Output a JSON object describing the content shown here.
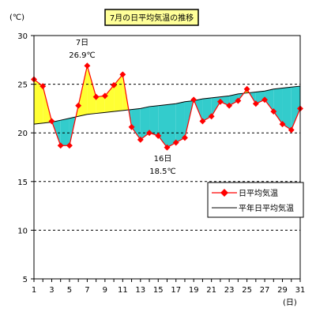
{
  "chart_data": {
    "type": "line",
    "title": "7月の日平均気温の推移",
    "ylabel": "(℃)",
    "xlabel": "(日)",
    "ylim": [
      5,
      30
    ],
    "yticks": [
      5,
      10,
      15,
      20,
      25,
      30
    ],
    "xticks": [
      1,
      3,
      5,
      7,
      9,
      11,
      13,
      15,
      17,
      19,
      21,
      23,
      25,
      27,
      29,
      31
    ],
    "grid": "horizontal-dashed",
    "legend_position": "lower-right",
    "colors": {
      "daily": "#ff0000",
      "normal": "#000000",
      "above_fill": "#ffff33",
      "below_fill": "#33cccc"
    },
    "x": [
      1,
      2,
      3,
      4,
      5,
      6,
      7,
      8,
      9,
      10,
      11,
      12,
      13,
      14,
      15,
      16,
      17,
      18,
      19,
      20,
      21,
      22,
      23,
      24,
      25,
      26,
      27,
      28,
      29,
      30,
      31
    ],
    "series": [
      {
        "name": "日平均気温",
        "values": [
          25.5,
          24.8,
          21.2,
          18.7,
          18.7,
          22.8,
          26.9,
          23.7,
          23.8,
          24.9,
          26.0,
          20.6,
          19.3,
          20.0,
          19.7,
          18.5,
          19.0,
          19.5,
          23.4,
          21.2,
          21.7,
          23.2,
          22.8,
          23.3,
          24.5,
          23.0,
          23.4,
          22.2,
          20.9,
          20.3,
          22.5
        ]
      },
      {
        "name": "平年日平均気温",
        "values": [
          20.9,
          21.0,
          21.1,
          21.3,
          21.5,
          21.7,
          21.9,
          22.0,
          22.1,
          22.2,
          22.3,
          22.4,
          22.5,
          22.7,
          22.8,
          22.9,
          23.0,
          23.2,
          23.3,
          23.5,
          23.6,
          23.7,
          23.8,
          24.0,
          24.1,
          24.2,
          24.3,
          24.5,
          24.6,
          24.7,
          24.8
        ]
      }
    ],
    "annotations": [
      {
        "day_label": "7日",
        "value_label": "26.9℃"
      },
      {
        "day_label": "16日",
        "value_label": "18.5℃"
      }
    ]
  }
}
